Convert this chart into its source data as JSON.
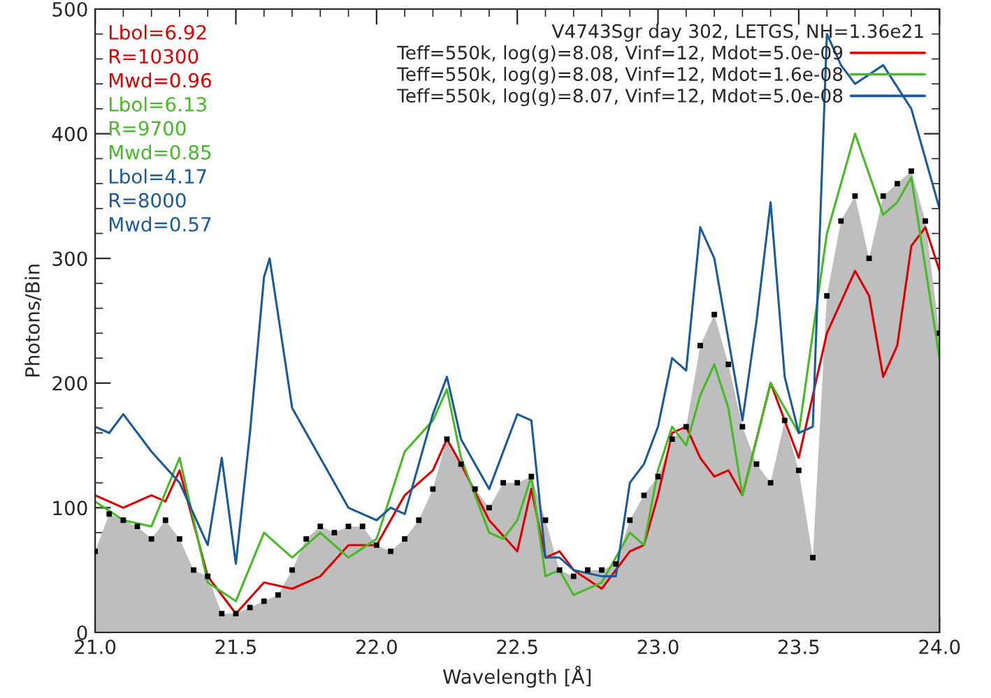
{
  "chart_data": {
    "type": "line",
    "xlabel": "Wavelength [Å]",
    "ylabel": "Photons/Bin",
    "legend_title": "V4743Sgr day 302, LETGS, NH=1.36e21",
    "legend": "top right",
    "grid": false,
    "xlim": [
      21.0,
      24.0
    ],
    "xticks": [
      {
        "value": 21.0,
        "label": "21.0"
      },
      {
        "value": 21.5,
        "label": "21.5"
      },
      {
        "value": 22.0,
        "label": "22.0"
      },
      {
        "value": 22.5,
        "label": "22.5"
      },
      {
        "value": 23.0,
        "label": "23.0"
      },
      {
        "value": 23.5,
        "label": "23.5"
      },
      {
        "value": 24.0,
        "label": "24.0"
      }
    ],
    "ylim": [
      0,
      500
    ],
    "yticks": [
      0,
      100,
      200,
      300,
      400,
      500
    ],
    "annotations": [
      "Lbol=6.92",
      "R=10300",
      "Mwd=0.96",
      "Lbol=6.13",
      "R=9700",
      "Mwd=0.85",
      "Lbol=4.17",
      "R=8000",
      "Mwd=0.57"
    ],
    "series": [
      {
        "type": "area",
        "color": "#bebebe",
        "marker": "square",
        "x": [
          21.0,
          21.05,
          21.1,
          21.15,
          21.2,
          21.25,
          21.3,
          21.35,
          21.4,
          21.45,
          21.5,
          21.55,
          21.6,
          21.65,
          21.7,
          21.75,
          21.8,
          21.85,
          21.9,
          21.95,
          22.0,
          22.05,
          22.1,
          22.15,
          22.2,
          22.25,
          22.3,
          22.35,
          22.4,
          22.45,
          22.5,
          22.55,
          22.6,
          22.65,
          22.7,
          22.75,
          22.8,
          22.85,
          22.9,
          22.95,
          23.0,
          23.05,
          23.1,
          23.15,
          23.2,
          23.25,
          23.3,
          23.35,
          23.4,
          23.45,
          23.5,
          23.55,
          23.6,
          23.65,
          23.7,
          23.75,
          23.8,
          23.85,
          23.9,
          23.95,
          24.0
        ],
        "values": [
          65,
          95,
          90,
          85,
          75,
          90,
          75,
          50,
          45,
          15,
          15,
          20,
          25,
          30,
          50,
          75,
          85,
          80,
          85,
          85,
          70,
          65,
          75,
          90,
          115,
          155,
          135,
          115,
          100,
          120,
          120,
          125,
          90,
          50,
          45,
          50,
          50,
          55,
          90,
          110,
          125,
          155,
          165,
          230,
          255,
          215,
          165,
          135,
          120,
          170,
          130,
          60,
          270,
          330,
          350,
          300,
          350,
          360,
          370,
          330,
          240
        ]
      },
      {
        "name": "Teff=550k, log(g)=8.08, Vinf=12, Mdot=5.0e-09",
        "color": "#dd0000",
        "x": [
          21.0,
          21.1,
          21.2,
          21.25,
          21.3,
          21.4,
          21.5,
          21.6,
          21.7,
          21.8,
          21.9,
          22.0,
          22.1,
          22.2,
          22.25,
          22.3,
          22.4,
          22.5,
          22.55,
          22.6,
          22.65,
          22.7,
          22.8,
          22.9,
          22.95,
          23.0,
          23.05,
          23.1,
          23.15,
          23.2,
          23.25,
          23.3,
          23.4,
          23.5,
          23.6,
          23.7,
          23.75,
          23.8,
          23.85,
          23.9,
          23.95,
          24.0
        ],
        "values": [
          110,
          100,
          110,
          105,
          130,
          45,
          15,
          40,
          35,
          45,
          70,
          70,
          110,
          130,
          155,
          135,
          90,
          65,
          115,
          60,
          65,
          50,
          35,
          65,
          70,
          110,
          160,
          165,
          140,
          125,
          130,
          110,
          200,
          140,
          240,
          290,
          270,
          205,
          230,
          310,
          325,
          290
        ]
      },
      {
        "name": "Teff=550k, log(g)=8.08, Vinf=12, Mdot=1.6e-08",
        "color": "#44bb22",
        "x": [
          21.0,
          21.1,
          21.2,
          21.3,
          21.35,
          21.4,
          21.5,
          21.6,
          21.7,
          21.8,
          21.85,
          21.9,
          22.0,
          22.1,
          22.2,
          22.25,
          22.3,
          22.4,
          22.45,
          22.5,
          22.55,
          22.6,
          22.65,
          22.7,
          22.8,
          22.9,
          22.95,
          23.0,
          23.05,
          23.1,
          23.15,
          23.2,
          23.25,
          23.3,
          23.4,
          23.5,
          23.6,
          23.7,
          23.8,
          23.85,
          23.9,
          24.0
        ],
        "values": [
          105,
          90,
          85,
          140,
          90,
          40,
          25,
          80,
          60,
          80,
          70,
          60,
          75,
          145,
          170,
          195,
          140,
          80,
          75,
          90,
          125,
          45,
          50,
          30,
          40,
          80,
          70,
          130,
          165,
          150,
          190,
          215,
          180,
          110,
          200,
          160,
          320,
          400,
          335,
          345,
          365,
          220
        ]
      },
      {
        "name": "Teff=550k, log(g)=8.07, Vinf=12, Mdot=5.0e-08",
        "color": "#1a5a99",
        "x": [
          21.0,
          21.05,
          21.1,
          21.2,
          21.3,
          21.4,
          21.45,
          21.5,
          21.55,
          21.6,
          21.62,
          21.7,
          21.8,
          21.9,
          22.0,
          22.05,
          22.1,
          22.2,
          22.25,
          22.3,
          22.4,
          22.5,
          22.55,
          22.6,
          22.65,
          22.7,
          22.8,
          22.85,
          22.9,
          22.95,
          23.0,
          23.05,
          23.1,
          23.15,
          23.2,
          23.3,
          23.35,
          23.4,
          23.45,
          23.5,
          23.55,
          23.6,
          23.65,
          23.7,
          23.8,
          23.9,
          24.0
        ],
        "values": [
          165,
          160,
          175,
          145,
          120,
          70,
          140,
          55,
          160,
          285,
          300,
          180,
          140,
          100,
          90,
          100,
          95,
          175,
          205,
          155,
          115,
          175,
          170,
          60,
          60,
          50,
          45,
          45,
          120,
          135,
          165,
          220,
          210,
          325,
          300,
          170,
          250,
          345,
          205,
          160,
          165,
          480,
          455,
          440,
          455,
          420,
          340
        ]
      }
    ]
  }
}
